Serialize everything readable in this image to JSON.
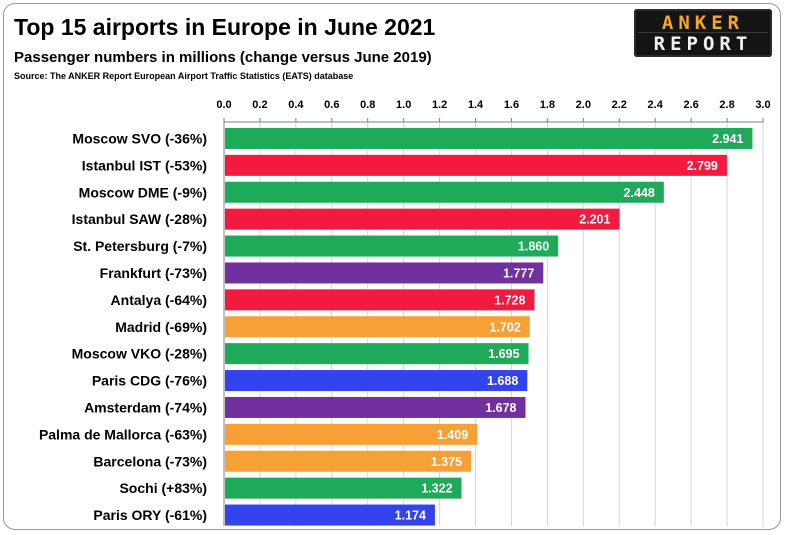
{
  "header": {
    "title": "Top 15 airports in Europe in June 2021",
    "subtitle": "Passenger numbers in millions (change versus June 2019)",
    "source": "Source: The ANKER Report European Airport Traffic Statistics (EATS) database"
  },
  "logo": {
    "line1": "ANKER",
    "line2": "REPORT"
  },
  "colors": {
    "green": "#1faa59",
    "red": "#f21b3f",
    "purple": "#7030a0",
    "orange": "#f7a035",
    "blue": "#3344ee"
  },
  "chart_data": {
    "type": "bar",
    "orientation": "horizontal",
    "title": "Top 15 airports in Europe in June 2021",
    "subtitle": "Passenger numbers in millions (change versus June 2019)",
    "xlim": [
      0,
      3.0
    ],
    "x_ticks": [
      "0.0",
      "0.2",
      "0.4",
      "0.6",
      "0.8",
      "1.0",
      "1.2",
      "1.4",
      "1.6",
      "1.8",
      "2.0",
      "2.2",
      "2.4",
      "2.6",
      "2.8",
      "3.0"
    ],
    "x_tick_values": [
      0,
      0.2,
      0.4,
      0.6,
      0.8,
      1.0,
      1.2,
      1.4,
      1.6,
      1.8,
      2.0,
      2.2,
      2.4,
      2.6,
      2.8,
      3.0
    ],
    "axis_position": "top",
    "grid": true,
    "categories": [
      "Moscow SVO (-36%)",
      "Istanbul IST (-53%)",
      "Moscow DME (-9%)",
      "Istanbul SAW (-28%)",
      "St. Petersburg (-7%)",
      "Frankfurt (-73%)",
      "Antalya (-64%)",
      "Madrid (-69%)",
      "Moscow VKO (-28%)",
      "Paris CDG (-76%)",
      "Amsterdam (-74%)",
      "Palma de Mallorca (-63%)",
      "Barcelona (-73%)",
      "Sochi (+83%)",
      "Paris ORY (-61%)"
    ],
    "values": [
      2.941,
      2.799,
      2.448,
      2.201,
      1.86,
      1.777,
      1.728,
      1.702,
      1.695,
      1.688,
      1.678,
      1.409,
      1.375,
      1.322,
      1.174
    ],
    "value_labels": [
      "2.941",
      "2.799",
      "2.448",
      "2.201",
      "1.860",
      "1.777",
      "1.728",
      "1.702",
      "1.695",
      "1.688",
      "1.678",
      "1.409",
      "1.375",
      "1.322",
      "1.174"
    ],
    "bar_colors": [
      "green",
      "red",
      "green",
      "red",
      "green",
      "purple",
      "red",
      "orange",
      "green",
      "blue",
      "purple",
      "orange",
      "orange",
      "green",
      "blue"
    ]
  }
}
